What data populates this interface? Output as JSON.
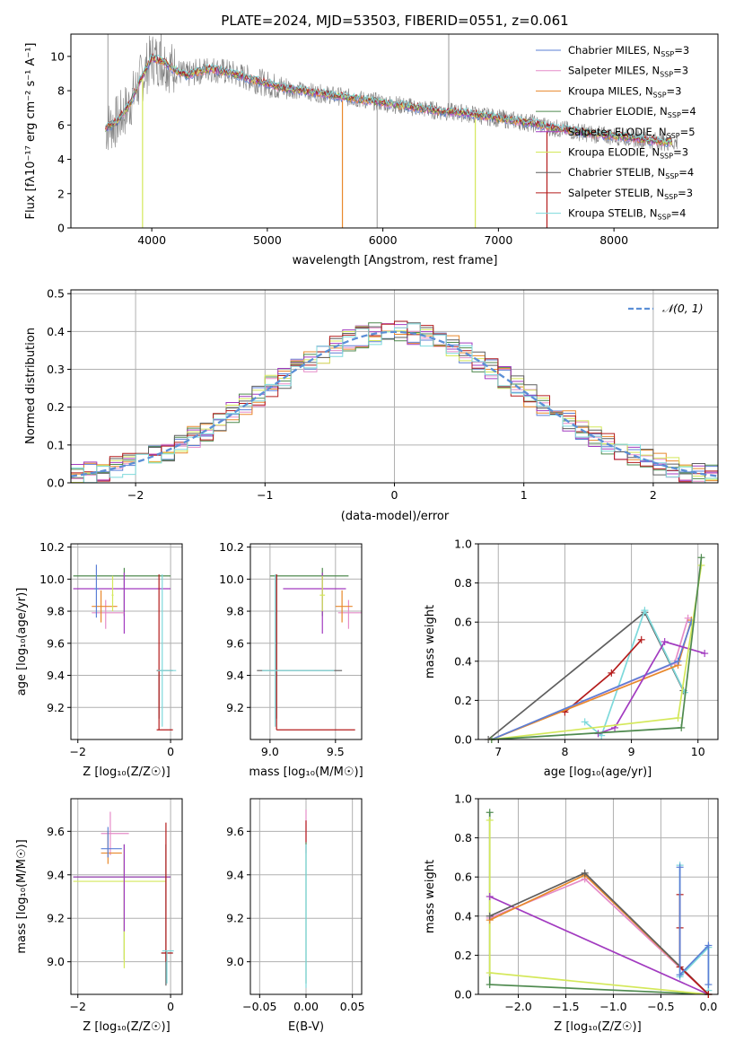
{
  "colors": {
    "chabrier_miles": "#5b7fd6",
    "salpeter_miles": "#e58cc8",
    "kroupa_miles": "#e8882b",
    "chabrier_elodie": "#4f8a4f",
    "salpeter_elodie": "#a23bc0",
    "kroupa_elodie": "#d4e85a",
    "chabrier_stelib": "#5f5f5f",
    "salpeter_stelib": "#b41c1c",
    "kroupa_stelib": "#7dd9db",
    "data": "#808080",
    "normal": "#5b8fd6"
  },
  "chart_data": [
    {
      "id": "spectrum",
      "type": "line",
      "title": "PLATE=2024, MJD=53503, FIBERID=0551, z=0.061",
      "xlabel": "wavelength [Angstrom, rest frame]",
      "ylabel": "Flux [fλ10⁻¹⁷ erg cm⁻² s⁻¹ A⁻¹]",
      "xlim": [
        3300,
        8900
      ],
      "ylim": [
        0,
        11.3
      ],
      "xticks": [
        "4000",
        "5000",
        "6000",
        "7000",
        "8000"
      ],
      "yticks": [
        "0",
        "2",
        "4",
        "6",
        "8",
        "10"
      ],
      "grid": false,
      "legend_position": "top-right",
      "legend": [
        {
          "label": "Chabrier MILES, N",
          "sub": "SSP",
          "tail": "=3",
          "key": "chabrier_miles"
        },
        {
          "label": "Salpeter MILES, N",
          "sub": "SSP",
          "tail": "=3",
          "key": "salpeter_miles"
        },
        {
          "label": "Kroupa MILES, N",
          "sub": "SSP",
          "tail": "=3",
          "key": "kroupa_miles"
        },
        {
          "label": "Chabrier ELODIE, N",
          "sub": "SSP",
          "tail": "=4",
          "key": "chabrier_elodie"
        },
        {
          "label": "Salpeter ELODIE, N",
          "sub": "SSP",
          "tail": "=5",
          "key": "salpeter_elodie"
        },
        {
          "label": "Kroupa ELODIE, N",
          "sub": "SSP",
          "tail": "=3",
          "key": "kroupa_elodie"
        },
        {
          "label": "Chabrier STELIB, N",
          "sub": "SSP",
          "tail": "=4",
          "key": "chabrier_stelib"
        },
        {
          "label": "Salpeter STELIB, N",
          "sub": "SSP",
          "tail": "=3",
          "key": "salpeter_stelib"
        },
        {
          "label": "Kroupa STELIB, N",
          "sub": "SSP",
          "tail": "=4",
          "key": "kroupa_stelib"
        }
      ],
      "continuum": {
        "x": [
          3600,
          3700,
          3800,
          3900,
          4000,
          4100,
          4200,
          4300,
          4400,
          4500,
          4700,
          4900,
          5100,
          5300,
          5500,
          5700,
          5900,
          6100,
          6300,
          6500,
          6700,
          6900,
          7100,
          7300,
          7500,
          7700,
          7900,
          8100,
          8300,
          8500
        ],
        "y": [
          5.8,
          6.2,
          7.1,
          8.6,
          9.9,
          9.7,
          9.2,
          8.9,
          9.1,
          9.3,
          9.0,
          8.6,
          8.2,
          8.0,
          7.8,
          7.6,
          7.4,
          7.2,
          7.0,
          6.8,
          6.7,
          6.5,
          6.3,
          6.1,
          5.8,
          5.6,
          5.4,
          5.3,
          5.1,
          5.0
        ]
      }
    },
    {
      "id": "residuals",
      "type": "histogram",
      "xlabel": "(data-model)/error",
      "ylabel": "Normed distribution",
      "xlim": [
        -2.5,
        2.5
      ],
      "ylim": [
        0,
        0.51
      ],
      "xticks": [
        "−2",
        "−1",
        "0",
        "1",
        "2"
      ],
      "yticks": [
        "0.0",
        "0.1",
        "0.2",
        "0.3",
        "0.4",
        "0.5"
      ],
      "grid": true,
      "legend_position": "top-right",
      "legend_label": "𝒩(0, 1)",
      "bin_width": 0.1
    },
    {
      "id": "z_vs_age",
      "type": "errorbar",
      "xlabel": "Z [log₁₀(Z/Z☉)]",
      "ylabel": "age  [log₁₀(age/yr)]",
      "xlim": [
        -2.15,
        0.25
      ],
      "ylim": [
        9.0,
        10.22
      ],
      "xticks": [
        "−2",
        "0"
      ],
      "yticks": [
        "9.2",
        "9.4",
        "9.6",
        "9.8",
        "10.0",
        "10.2"
      ],
      "grid": true
    },
    {
      "id": "mass_vs_age",
      "type": "errorbar",
      "xlabel": "mass [log₁₀(M/M☉)]",
      "ylabel": "",
      "xlim": [
        8.85,
        9.7
      ],
      "ylim": [
        9.0,
        10.22
      ],
      "xticks": [
        "9.0",
        "9.5"
      ],
      "yticks": [
        "9.2",
        "9.4",
        "9.6",
        "9.8",
        "10.0",
        "10.2"
      ],
      "grid": true
    },
    {
      "id": "age_weights",
      "type": "line",
      "xlabel": "age  [log₁₀(age/yr)]",
      "ylabel": "mass weight",
      "xlim": [
        6.7,
        10.3
      ],
      "ylim": [
        0,
        1.0
      ],
      "xticks": [
        "7",
        "8",
        "9",
        "10"
      ],
      "yticks": [
        "0.0",
        "0.2",
        "0.4",
        "0.6",
        "0.8",
        "1.0"
      ],
      "grid": true,
      "series": [
        {
          "key": "chabrier_stelib",
          "x": [
            6.85,
            9.2,
            9.78
          ],
          "y": [
            0.0,
            0.65,
            0.25
          ]
        },
        {
          "key": "kroupa_stelib",
          "x": [
            8.3,
            8.55,
            9.2,
            9.8
          ],
          "y": [
            0.09,
            0.02,
            0.66,
            0.24
          ]
        },
        {
          "key": "salpeter_stelib",
          "x": [
            8.0,
            8.7,
            9.15
          ],
          "y": [
            0.14,
            0.34,
            0.51
          ]
        },
        {
          "key": "salpeter_miles",
          "x": [
            6.9,
            9.65,
            9.85
          ],
          "y": [
            0.0,
            0.39,
            0.62
          ]
        },
        {
          "key": "kroupa_miles",
          "x": [
            6.9,
            9.7,
            9.9
          ],
          "y": [
            0.0,
            0.38,
            0.61
          ]
        },
        {
          "key": "chabrier_miles",
          "x": [
            6.9,
            9.7,
            9.9
          ],
          "y": [
            0.0,
            0.4,
            0.6
          ]
        },
        {
          "key": "salpeter_elodie",
          "x": [
            8.5,
            8.75,
            9.5,
            10.1
          ],
          "y": [
            0.03,
            0.06,
            0.5,
            0.44
          ]
        },
        {
          "key": "kroupa_elodie",
          "x": [
            6.9,
            9.7,
            10.05
          ],
          "y": [
            0.0,
            0.11,
            0.89
          ]
        },
        {
          "key": "chabrier_elodie",
          "x": [
            6.9,
            9.75,
            10.05
          ],
          "y": [
            0.0,
            0.06,
            0.93
          ]
        }
      ]
    },
    {
      "id": "z_vs_mass",
      "type": "errorbar",
      "xlabel": "Z [log₁₀(Z/Z☉)]",
      "ylabel": "mass [log₁₀(M/M☉)]",
      "xlim": [
        -2.15,
        0.25
      ],
      "ylim": [
        8.85,
        9.75
      ],
      "xticks": [
        "−2",
        "0"
      ],
      "yticks": [
        "9.0",
        "9.2",
        "9.4",
        "9.6"
      ],
      "grid": true
    },
    {
      "id": "ebv_vs_mass",
      "type": "errorbar",
      "xlabel": "E(B-V)",
      "ylabel": "",
      "xlim": [
        -0.06,
        0.06
      ],
      "ylim": [
        8.85,
        9.75
      ],
      "xticks": [
        "−0.05",
        "0.00",
        "0.05"
      ],
      "yticks": [
        "9.0",
        "9.2",
        "9.4",
        "9.6"
      ],
      "grid": true
    },
    {
      "id": "z_weights",
      "type": "line",
      "xlabel": "Z [log₁₀(Z/Z☉)]",
      "ylabel": "mass weight",
      "xlim": [
        -2.42,
        0.1
      ],
      "ylim": [
        0,
        1.0
      ],
      "xticks": [
        "−2.0",
        "−1.5",
        "−1.0",
        "−0.5",
        "0.0"
      ],
      "yticks": [
        "0.0",
        "0.2",
        "0.4",
        "0.6",
        "0.8",
        "1.0"
      ],
      "grid": true,
      "series": [
        {
          "key": "chabrier_elodie",
          "x": [
            -2.3,
            -2.3,
            0.0
          ],
          "y": [
            0.93,
            0.05,
            0.0
          ]
        },
        {
          "key": "kroupa_elodie",
          "x": [
            -2.3,
            -2.3,
            0.0
          ],
          "y": [
            0.89,
            0.11,
            0.0
          ]
        },
        {
          "key": "salpeter_elodie",
          "x": [
            -2.3,
            0.0
          ],
          "y": [
            0.5,
            0.0
          ]
        },
        {
          "key": "salpeter_miles",
          "x": [
            -2.3,
            -1.3,
            0.0
          ],
          "y": [
            0.39,
            0.59,
            0.0
          ]
        },
        {
          "key": "kroupa_miles",
          "x": [
            -2.3,
            -1.3,
            0.0
          ],
          "y": [
            0.38,
            0.61,
            0.0
          ]
        },
        {
          "key": "chabrier_stelib",
          "x": [
            -2.3,
            -1.3,
            0.0
          ],
          "y": [
            0.4,
            0.62,
            0.0
          ]
        },
        {
          "key": "kroupa_stelib",
          "x": [
            -0.3,
            -0.3,
            0.0,
            0.0
          ],
          "y": [
            0.66,
            0.09,
            0.24,
            0.02
          ]
        },
        {
          "key": "salpeter_stelib",
          "x": [
            -0.3,
            -0.3,
            -0.3,
            0.0
          ],
          "y": [
            0.51,
            0.34,
            0.14,
            0.0
          ]
        },
        {
          "key": "chabrier_miles",
          "x": [
            -0.3,
            -0.3,
            0.0,
            0.0
          ],
          "y": [
            0.65,
            0.1,
            0.25,
            0.05
          ]
        }
      ]
    }
  ]
}
